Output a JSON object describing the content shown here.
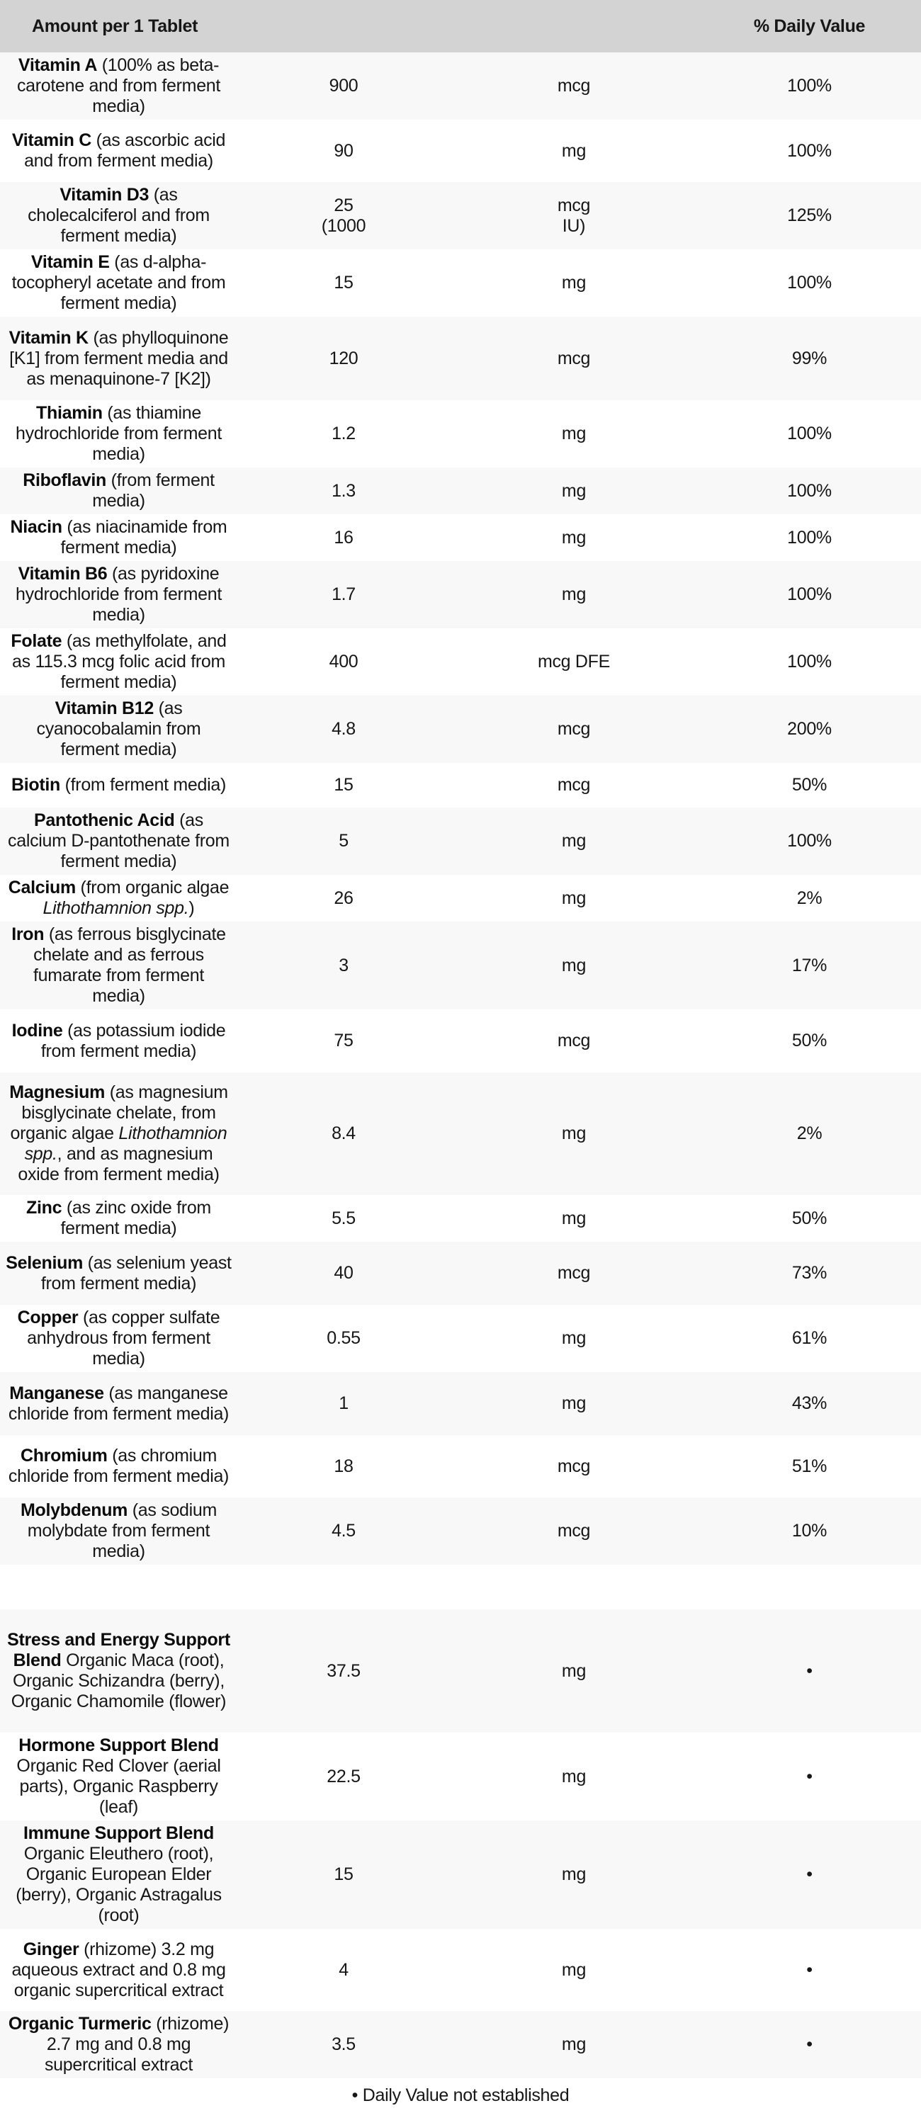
{
  "colors": {
    "header_bg": "#d3d3d3",
    "row_alt_bg": "#f8f8f8",
    "row_bg": "#ffffff",
    "text": "#161616"
  },
  "header": {
    "amount_label": "Amount per 1 Tablet",
    "daily_value_label": "% Daily Value"
  },
  "footnote": "• Daily Value not established",
  "table": {
    "columns": [
      "ingredient",
      "amount",
      "unit",
      "percent_daily_value"
    ],
    "rows": [
      {
        "name_parts": [
          {
            "t": "Vitamin A",
            "b": true
          },
          {
            "t": " (100% as beta-carotene and from ferment media)"
          }
        ],
        "amount": "900",
        "unit": "mcg",
        "dv": "100%"
      },
      {
        "name_parts": [
          {
            "t": "Vitamin C",
            "b": true
          },
          {
            "t": " (as ascorbic acid and from ferment media)"
          }
        ],
        "amount": "90",
        "unit": "mg",
        "dv": "100%"
      },
      {
        "name_parts": [
          {
            "t": "Vitamin D3",
            "b": true
          },
          {
            "t": " (as cholecalciferol and from ferment media)"
          }
        ],
        "amount": "25\n(1000",
        "unit": "mcg\nIU)",
        "dv": "125%"
      },
      {
        "name_parts": [
          {
            "t": "Vitamin E",
            "b": true
          },
          {
            "t": " (as d-alpha-tocopheryl acetate and from ferment media)"
          }
        ],
        "amount": "15",
        "unit": "mg",
        "dv": "100%"
      },
      {
        "name_parts": [
          {
            "t": "Vitamin K",
            "b": true
          },
          {
            "t": " (as phylloquinone [K1] from ferment media and as menaquinone-7 [K2])"
          }
        ],
        "amount": "120",
        "unit": "mcg",
        "dv": "99%"
      },
      {
        "name_parts": [
          {
            "t": "Thiamin",
            "b": true
          },
          {
            "t": " (as thiamine hydrochloride from ferment media)"
          }
        ],
        "amount": "1.2",
        "unit": "mg",
        "dv": "100%"
      },
      {
        "name_parts": [
          {
            "t": "Riboflavin",
            "b": true
          },
          {
            "t": " (from ferment media)"
          }
        ],
        "amount": "1.3",
        "unit": "mg",
        "dv": "100%"
      },
      {
        "name_parts": [
          {
            "t": "Niacin",
            "b": true
          },
          {
            "t": " (as niacinamide from ferment media)"
          }
        ],
        "amount": "16",
        "unit": "mg",
        "dv": "100%"
      },
      {
        "name_parts": [
          {
            "t": "Vitamin B6",
            "b": true
          },
          {
            "t": " (as pyridoxine hydrochloride from ferment media)"
          }
        ],
        "amount": "1.7",
        "unit": "mg",
        "dv": "100%"
      },
      {
        "name_parts": [
          {
            "t": "Folate",
            "b": true
          },
          {
            "t": " (as methylfolate, and as 115.3 mcg folic acid from ferment media)"
          }
        ],
        "amount": "400",
        "unit": "mcg DFE",
        "dv": "100%"
      },
      {
        "name_parts": [
          {
            "t": "Vitamin B12",
            "b": true
          },
          {
            "t": " (as cyanocobalamin from ferment media)"
          }
        ],
        "amount": "4.8",
        "unit": "mcg",
        "dv": "200%"
      },
      {
        "name_parts": [
          {
            "t": "Biotin",
            "b": true
          },
          {
            "t": " (from ferment media)"
          }
        ],
        "amount": "15",
        "unit": "mcg",
        "dv": "50%"
      },
      {
        "name_parts": [
          {
            "t": "Pantothenic Acid",
            "b": true
          },
          {
            "t": " (as calcium D-pantothenate from ferment media)"
          }
        ],
        "amount": "5",
        "unit": "mg",
        "dv": "100%"
      },
      {
        "name_parts": [
          {
            "t": "Calcium",
            "b": true
          },
          {
            "t": " (from organic algae "
          },
          {
            "t": "Lithothamnion spp.",
            "i": true
          },
          {
            "t": ")"
          }
        ],
        "amount": "26",
        "unit": "mg",
        "dv": "2%"
      },
      {
        "name_parts": [
          {
            "t": "Iron",
            "b": true
          },
          {
            "t": " (as ferrous bisglycinate chelate and as ferrous fumarate from ferment media)"
          }
        ],
        "amount": "3",
        "unit": "mg",
        "dv": "17%"
      },
      {
        "name_parts": [
          {
            "t": "Iodine",
            "b": true
          },
          {
            "t": " (as potassium iodide from ferment media)"
          }
        ],
        "amount": "75",
        "unit": "mcg",
        "dv": "50%"
      },
      {
        "name_parts": [
          {
            "t": "Magnesium",
            "b": true
          },
          {
            "t": " (as magnesium bisglycinate chelate, from organic algae "
          },
          {
            "t": "Lithothamnion spp.",
            "i": true
          },
          {
            "t": ", and as magnesium oxide from ferment media)"
          }
        ],
        "amount": "8.4",
        "unit": "mg",
        "dv": "2%"
      },
      {
        "name_parts": [
          {
            "t": "Zinc",
            "b": true
          },
          {
            "t": " (as zinc oxide from ferment media)"
          }
        ],
        "amount": "5.5",
        "unit": "mg",
        "dv": "50%"
      },
      {
        "name_parts": [
          {
            "t": "Selenium",
            "b": true
          },
          {
            "t": " (as selenium yeast from ferment media)"
          }
        ],
        "amount": "40",
        "unit": "mcg",
        "dv": "73%"
      },
      {
        "name_parts": [
          {
            "t": "Copper",
            "b": true
          },
          {
            "t": " (as copper sulfate anhydrous from ferment media)"
          }
        ],
        "amount": "0.55",
        "unit": "mg",
        "dv": "61%"
      },
      {
        "name_parts": [
          {
            "t": "Manganese",
            "b": true
          },
          {
            "t": " (as manganese chloride from ferment media)"
          }
        ],
        "amount": "1",
        "unit": "mg",
        "dv": "43%"
      },
      {
        "name_parts": [
          {
            "t": "Chromium",
            "b": true
          },
          {
            "t": " (as chromium chloride from ferment media)"
          }
        ],
        "amount": "18",
        "unit": "mcg",
        "dv": "51%"
      },
      {
        "name_parts": [
          {
            "t": "Molybdenum",
            "b": true
          },
          {
            "t": " (as sodium molybdate from ferment media)"
          }
        ],
        "amount": "4.5",
        "unit": "mcg",
        "dv": "10%"
      },
      {
        "spacer": true
      },
      {
        "name_parts": [
          {
            "t": "Stress and Energy Support Blend",
            "b": true
          },
          {
            "t": " Organic Maca (root), Organic Schizandra (berry), Organic Chamomile (flower)"
          }
        ],
        "amount": "37.5",
        "unit": "mg",
        "dv": "•"
      },
      {
        "name_parts": [
          {
            "t": "Hormone Support Blend",
            "b": true
          },
          {
            "t": " Organic Red Clover (aerial parts), Organic Raspberry (leaf)"
          }
        ],
        "amount": "22.5",
        "unit": "mg",
        "dv": "•"
      },
      {
        "name_parts": [
          {
            "t": "Immune Support Blend",
            "b": true
          },
          {
            "t": " Organic Eleuthero (root), Organic European Elder (berry), Organic Astragalus (root)"
          }
        ],
        "amount": "15",
        "unit": "mg",
        "dv": "•"
      },
      {
        "name_parts": [
          {
            "t": "Ginger",
            "b": true
          },
          {
            "t": " (rhizome) 3.2 mg aqueous extract and 0.8 mg organic supercritical extract"
          }
        ],
        "amount": "4",
        "unit": "mg",
        "dv": "•"
      },
      {
        "name_parts": [
          {
            "t": "Organic Turmeric",
            "b": true
          },
          {
            "t": " (rhizome) 2.7 mg and 0.8 mg supercritical extract"
          }
        ],
        "amount": "3.5",
        "unit": "mg",
        "dv": "•"
      }
    ]
  }
}
